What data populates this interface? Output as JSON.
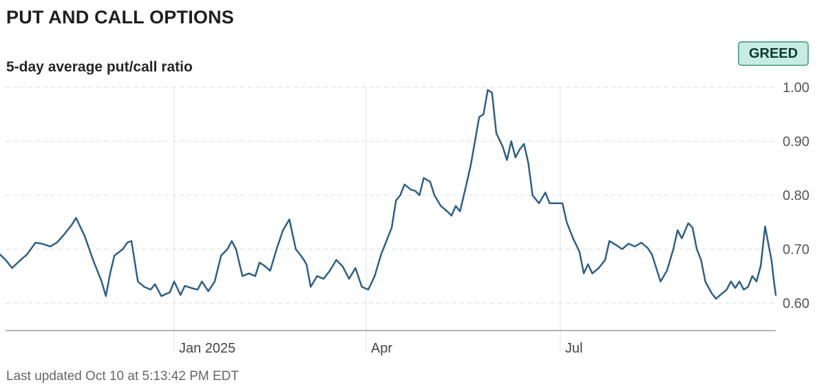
{
  "header": {
    "title": "PUT AND CALL OPTIONS",
    "subtitle": "5-day average put/call ratio",
    "badge": "GREED"
  },
  "footer": {
    "updated": "Last updated Oct 10 at 5:13:42 PM EDT"
  },
  "colors": {
    "line": "#2c5f88",
    "badge_bg": "#c9ece2",
    "badge_border": "#5fae96"
  },
  "chart_data": {
    "type": "line",
    "title": "5-day average put/call ratio",
    "xlabel": "",
    "ylabel": "",
    "ylim": [
      0.55,
      1.0
    ],
    "yticks": [
      0.6,
      0.7,
      0.8,
      0.9,
      1.0
    ],
    "ytick_labels": [
      "0.60",
      "0.70",
      "0.80",
      "0.90",
      "1.00"
    ],
    "xticks": [
      {
        "label": "Jan 2025",
        "date": "2025-01-01"
      },
      {
        "label": "Apr",
        "date": "2025-04-01"
      },
      {
        "label": "Jul",
        "date": "2025-07-01"
      }
    ],
    "x_range": [
      "2024-10-10",
      "2025-10-10"
    ],
    "grid": "horizontal dashed, vertical at month ticks",
    "series": [
      {
        "values": [
          [
            "2024-10-10",
            0.695
          ],
          [
            "2024-10-14",
            0.68
          ],
          [
            "2024-10-17",
            0.665
          ],
          [
            "2024-10-21",
            0.68
          ],
          [
            "2024-10-24",
            0.69
          ],
          [
            "2024-10-28",
            0.712
          ],
          [
            "2024-10-31",
            0.71
          ],
          [
            "2024-11-04",
            0.705
          ],
          [
            "2024-11-07",
            0.712
          ],
          [
            "2024-11-10",
            0.725
          ],
          [
            "2024-11-14",
            0.745
          ],
          [
            "2024-11-16",
            0.758
          ],
          [
            "2024-11-20",
            0.725
          ],
          [
            "2024-11-24",
            0.68
          ],
          [
            "2024-11-28",
            0.64
          ],
          [
            "2024-11-30",
            0.613
          ],
          [
            "2024-12-02",
            0.655
          ],
          [
            "2024-12-04",
            0.688
          ],
          [
            "2024-12-08",
            0.7
          ],
          [
            "2024-12-10",
            0.712
          ],
          [
            "2024-12-12",
            0.715
          ],
          [
            "2024-12-15",
            0.64
          ],
          [
            "2024-12-18",
            0.63
          ],
          [
            "2024-12-21",
            0.625
          ],
          [
            "2024-12-23",
            0.635
          ],
          [
            "2024-12-26",
            0.613
          ],
          [
            "2024-12-30",
            0.62
          ],
          [
            "2025-01-01",
            0.64
          ],
          [
            "2025-01-04",
            0.615
          ],
          [
            "2025-01-06",
            0.632
          ],
          [
            "2025-01-09",
            0.628
          ],
          [
            "2025-01-12",
            0.625
          ],
          [
            "2025-01-14",
            0.64
          ],
          [
            "2025-01-17",
            0.622
          ],
          [
            "2025-01-20",
            0.64
          ],
          [
            "2025-01-23",
            0.688
          ],
          [
            "2025-01-26",
            0.7
          ],
          [
            "2025-01-28",
            0.715
          ],
          [
            "2025-01-30",
            0.7
          ],
          [
            "2025-02-02",
            0.65
          ],
          [
            "2025-02-05",
            0.655
          ],
          [
            "2025-02-08",
            0.65
          ],
          [
            "2025-02-10",
            0.675
          ],
          [
            "2025-02-12",
            0.67
          ],
          [
            "2025-02-15",
            0.66
          ],
          [
            "2025-02-18",
            0.7
          ],
          [
            "2025-02-21",
            0.735
          ],
          [
            "2025-02-24",
            0.755
          ],
          [
            "2025-02-27",
            0.7
          ],
          [
            "2025-03-02",
            0.685
          ],
          [
            "2025-03-04",
            0.672
          ],
          [
            "2025-03-06",
            0.63
          ],
          [
            "2025-03-09",
            0.65
          ],
          [
            "2025-03-12",
            0.645
          ],
          [
            "2025-03-15",
            0.66
          ],
          [
            "2025-03-18",
            0.68
          ],
          [
            "2025-03-21",
            0.668
          ],
          [
            "2025-03-24",
            0.645
          ],
          [
            "2025-03-27",
            0.665
          ],
          [
            "2025-03-30",
            0.63
          ],
          [
            "2025-04-02",
            0.625
          ],
          [
            "2025-04-05",
            0.65
          ],
          [
            "2025-04-08",
            0.69
          ],
          [
            "2025-04-11",
            0.72
          ],
          [
            "2025-04-13",
            0.74
          ],
          [
            "2025-04-15",
            0.79
          ],
          [
            "2025-04-17",
            0.8
          ],
          [
            "2025-04-19",
            0.82
          ],
          [
            "2025-04-22",
            0.81
          ],
          [
            "2025-04-24",
            0.808
          ],
          [
            "2025-04-26",
            0.8
          ],
          [
            "2025-04-28",
            0.832
          ],
          [
            "2025-05-01",
            0.825
          ],
          [
            "2025-05-03",
            0.8
          ],
          [
            "2025-05-06",
            0.78
          ],
          [
            "2025-05-09",
            0.77
          ],
          [
            "2025-05-11",
            0.762
          ],
          [
            "2025-05-13",
            0.78
          ],
          [
            "2025-05-15",
            0.77
          ],
          [
            "2025-05-18",
            0.82
          ],
          [
            "2025-05-20",
            0.855
          ],
          [
            "2025-05-22",
            0.9
          ],
          [
            "2025-05-24",
            0.945
          ],
          [
            "2025-05-26",
            0.95
          ],
          [
            "2025-05-28",
            0.995
          ],
          [
            "2025-05-30",
            0.99
          ],
          [
            "2025-06-01",
            0.915
          ],
          [
            "2025-06-04",
            0.89
          ],
          [
            "2025-06-06",
            0.865
          ],
          [
            "2025-06-08",
            0.9
          ],
          [
            "2025-06-10",
            0.87
          ],
          [
            "2025-06-12",
            0.885
          ],
          [
            "2025-06-14",
            0.895
          ],
          [
            "2025-06-16",
            0.86
          ],
          [
            "2025-06-18",
            0.8
          ],
          [
            "2025-06-21",
            0.785
          ],
          [
            "2025-06-24",
            0.805
          ],
          [
            "2025-06-26",
            0.785
          ],
          [
            "2025-06-28",
            0.785
          ],
          [
            "2025-07-02",
            0.785
          ],
          [
            "2025-07-04",
            0.75
          ],
          [
            "2025-07-07",
            0.72
          ],
          [
            "2025-07-10",
            0.695
          ],
          [
            "2025-07-12",
            0.655
          ],
          [
            "2025-07-14",
            0.672
          ],
          [
            "2025-07-16",
            0.655
          ],
          [
            "2025-07-19",
            0.665
          ],
          [
            "2025-07-22",
            0.68
          ],
          [
            "2025-07-24",
            0.715
          ],
          [
            "2025-07-27",
            0.708
          ],
          [
            "2025-07-30",
            0.7
          ],
          [
            "2025-08-02",
            0.71
          ],
          [
            "2025-08-05",
            0.705
          ],
          [
            "2025-08-08",
            0.712
          ],
          [
            "2025-08-11",
            0.702
          ],
          [
            "2025-08-13",
            0.69
          ],
          [
            "2025-08-15",
            0.665
          ],
          [
            "2025-08-17",
            0.64
          ],
          [
            "2025-08-20",
            0.66
          ],
          [
            "2025-08-23",
            0.7
          ],
          [
            "2025-08-25",
            0.735
          ],
          [
            "2025-08-27",
            0.72
          ],
          [
            "2025-08-30",
            0.748
          ],
          [
            "2025-09-01",
            0.74
          ],
          [
            "2025-09-03",
            0.7
          ],
          [
            "2025-09-05",
            0.68
          ],
          [
            "2025-09-07",
            0.64
          ],
          [
            "2025-09-10",
            0.618
          ],
          [
            "2025-09-12",
            0.608
          ],
          [
            "2025-09-14",
            0.615
          ],
          [
            "2025-09-17",
            0.625
          ],
          [
            "2025-09-19",
            0.64
          ],
          [
            "2025-09-21",
            0.628
          ],
          [
            "2025-09-23",
            0.64
          ],
          [
            "2025-09-25",
            0.625
          ],
          [
            "2025-09-27",
            0.63
          ],
          [
            "2025-09-29",
            0.65
          ],
          [
            "2025-10-01",
            0.64
          ],
          [
            "2025-10-03",
            0.67
          ],
          [
            "2025-10-05",
            0.742
          ],
          [
            "2025-10-07",
            0.7
          ],
          [
            "2025-10-08",
            0.68
          ],
          [
            "2025-10-09",
            0.645
          ],
          [
            "2025-10-10",
            0.615
          ]
        ]
      }
    ]
  }
}
